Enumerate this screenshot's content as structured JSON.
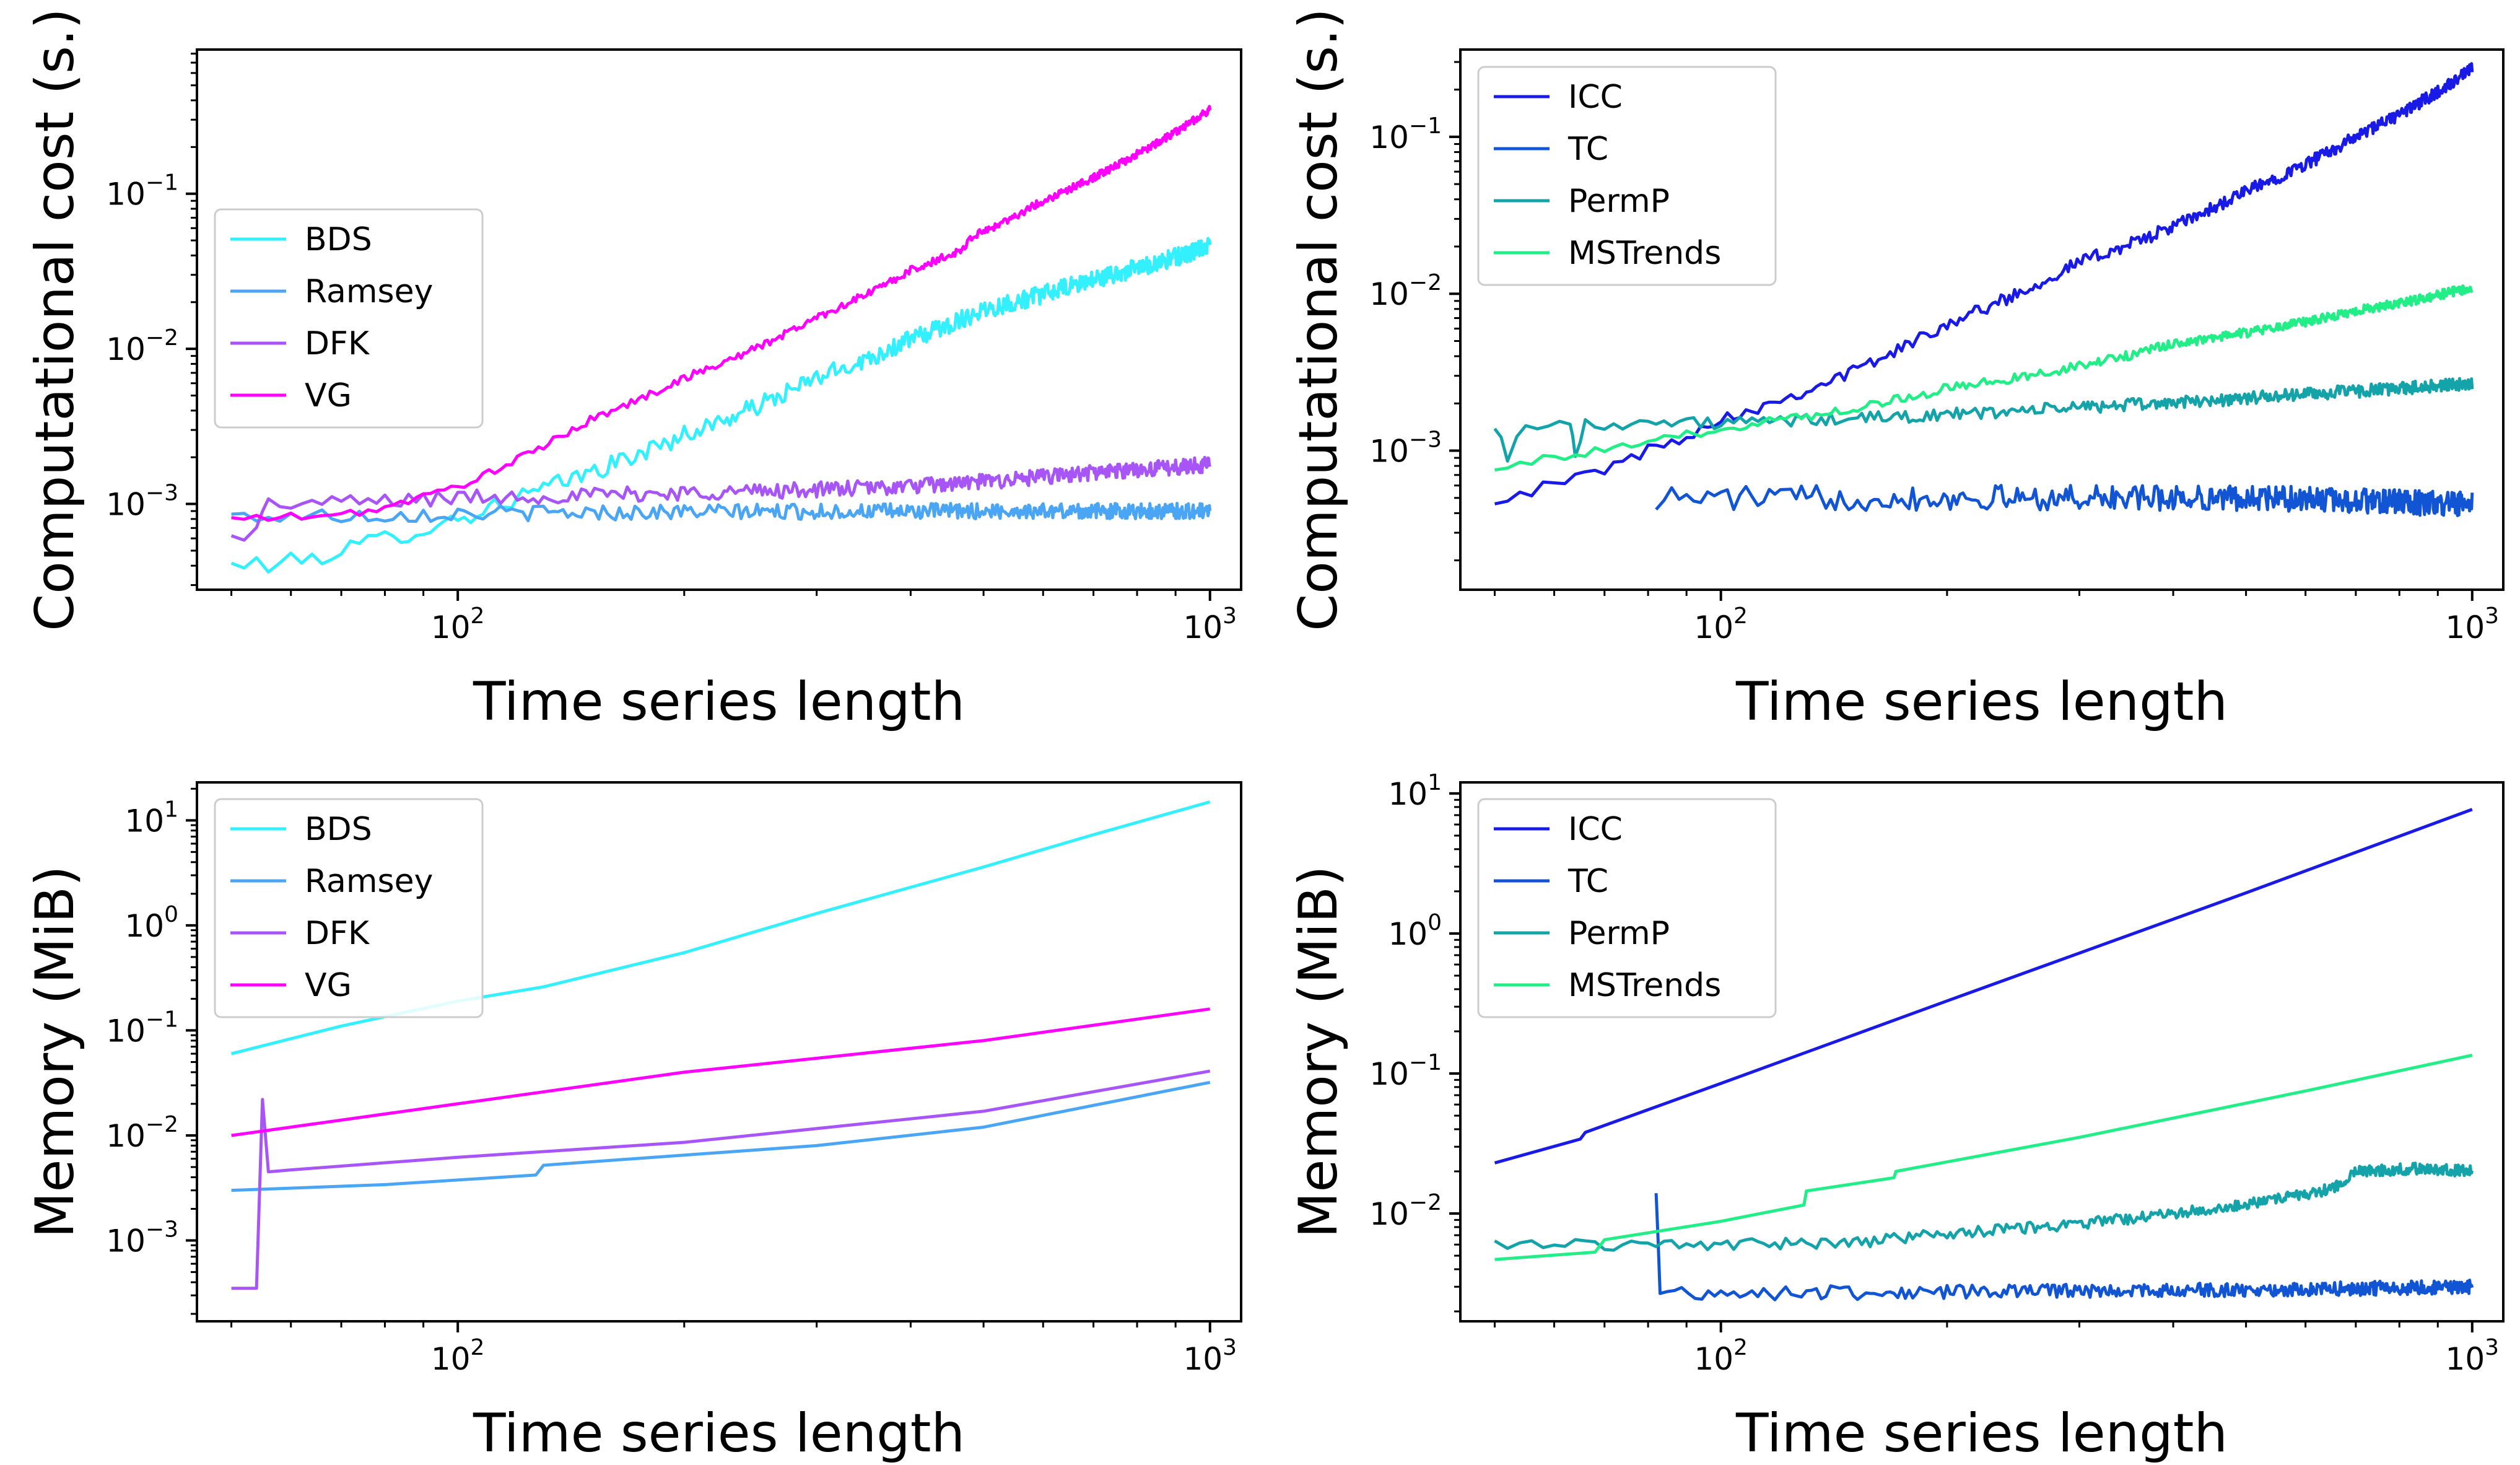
{
  "chart_data": [
    {
      "type": "line",
      "xlabel": "Time series length",
      "ylabel": "Computational cost (s.)",
      "xscale": "log",
      "yscale": "log",
      "xlim": [
        45,
        1100
      ],
      "ylim": [
        0.00028,
        0.85
      ],
      "xticks": [
        {
          "value": 100,
          "base": "10",
          "exp": "2"
        },
        {
          "value": 1000,
          "base": "10",
          "exp": "3"
        }
      ],
      "yticks": [
        {
          "value": 0.001,
          "base": "10",
          "exp": "−3"
        },
        {
          "value": 0.01,
          "base": "10",
          "exp": "−2"
        },
        {
          "value": 0.1,
          "base": "10",
          "exp": "−1"
        }
      ],
      "legend_position": "center-left",
      "series": [
        {
          "name": "BDS",
          "color": "#33f0ff",
          "noise": 0.06,
          "points": [
            [
              50,
              0.0004
            ],
            [
              60,
              0.00042
            ],
            [
              70,
              0.0005
            ],
            [
              80,
              0.0006
            ],
            [
              100,
              0.0008
            ],
            [
              120,
              0.0011
            ],
            [
              150,
              0.0016
            ],
            [
              200,
              0.0028
            ],
            [
              300,
              0.0065
            ],
            [
              400,
              0.0115
            ],
            [
              500,
              0.018
            ],
            [
              700,
              0.028
            ],
            [
              1000,
              0.046
            ]
          ]
        },
        {
          "name": "Ramsey",
          "color": "#4aa6f5",
          "noise": 0.05,
          "points": [
            [
              50,
              0.00083
            ],
            [
              80,
              0.00085
            ],
            [
              100,
              0.00087
            ],
            [
              200,
              0.00089
            ],
            [
              500,
              0.0009
            ],
            [
              1000,
              0.0009
            ]
          ]
        },
        {
          "name": "DFK",
          "color": "#a855f7",
          "noise": 0.05,
          "points": [
            [
              50,
              0.0006
            ],
            [
              54,
              0.0007
            ],
            [
              56,
              0.001
            ],
            [
              60,
              0.001
            ],
            [
              80,
              0.00105
            ],
            [
              100,
              0.0011
            ],
            [
              200,
              0.00118
            ],
            [
              400,
              0.0013
            ],
            [
              700,
              0.0016
            ],
            [
              1000,
              0.0018
            ]
          ]
        },
        {
          "name": "VG",
          "color": "#ff00ff",
          "noise": 0.025,
          "points": [
            [
              50,
              0.0008
            ],
            [
              70,
              0.00085
            ],
            [
              80,
              0.00095
            ],
            [
              100,
              0.0013
            ],
            [
              150,
              0.0035
            ],
            [
              200,
              0.0065
            ],
            [
              300,
              0.016
            ],
            [
              400,
              0.032
            ],
            [
              470,
              0.044
            ],
            [
              480,
              0.052
            ],
            [
              600,
              0.09
            ],
            [
              800,
              0.18
            ],
            [
              1000,
              0.35
            ]
          ]
        }
      ]
    },
    {
      "type": "line",
      "xlabel": "Time series length",
      "ylabel": "Computational cost (s.)",
      "xscale": "log",
      "yscale": "log",
      "xlim": [
        45,
        1100
      ],
      "ylim": [
        0.00013,
        0.36
      ],
      "xticks": [
        {
          "value": 100,
          "base": "10",
          "exp": "2"
        },
        {
          "value": 1000,
          "base": "10",
          "exp": "3"
        }
      ],
      "yticks": [
        {
          "value": 0.001,
          "base": "10",
          "exp": "−3"
        },
        {
          "value": 0.01,
          "base": "10",
          "exp": "−2"
        },
        {
          "value": 0.1,
          "base": "10",
          "exp": "−1"
        }
      ],
      "legend_position": "upper-left",
      "series": [
        {
          "name": "ICC",
          "color": "#1a1ae6",
          "noise": 0.04,
          "points": [
            [
              50,
              0.0005
            ],
            [
              60,
              0.0006
            ],
            [
              80,
              0.001
            ],
            [
              100,
              0.0016
            ],
            [
              200,
              0.0065
            ],
            [
              300,
              0.016
            ],
            [
              500,
              0.045
            ],
            [
              700,
              0.1
            ],
            [
              1000,
              0.27
            ]
          ]
        },
        {
          "name": "TC",
          "color": "#1155d4",
          "noise": 0.08,
          "points": [
            [
              82,
              0.0005
            ],
            [
              90,
              0.0005
            ],
            [
              200,
              0.0005
            ],
            [
              500,
              0.0005
            ],
            [
              1000,
              0.00045
            ]
          ]
        },
        {
          "name": "PermP",
          "color": "#13a3a8",
          "noise": 0.04,
          "points": [
            [
              50,
              0.0015
            ],
            [
              52,
              0.0009
            ],
            [
              55,
              0.0015
            ],
            [
              63,
              0.0015
            ],
            [
              64,
              0.0009
            ],
            [
              66,
              0.0015
            ],
            [
              100,
              0.0015
            ],
            [
              150,
              0.0016
            ],
            [
              300,
              0.0019
            ],
            [
              600,
              0.0023
            ],
            [
              1000,
              0.0027
            ]
          ]
        },
        {
          "name": "MSTrends",
          "color": "#22ee88",
          "noise": 0.03,
          "points": [
            [
              50,
              0.0008
            ],
            [
              70,
              0.001
            ],
            [
              100,
              0.0014
            ],
            [
              200,
              0.0025
            ],
            [
              400,
              0.0048
            ],
            [
              700,
              0.0078
            ],
            [
              1000,
              0.011
            ]
          ]
        }
      ]
    },
    {
      "type": "line",
      "xlabel": "Time series length",
      "ylabel": "Memory (MiB)",
      "xscale": "log",
      "yscale": "log",
      "xlim": [
        45,
        1100
      ],
      "ylim": [
        0.00017,
        23
      ],
      "xticks": [
        {
          "value": 100,
          "base": "10",
          "exp": "2"
        },
        {
          "value": 1000,
          "base": "10",
          "exp": "3"
        }
      ],
      "yticks": [
        {
          "value": 0.001,
          "base": "10",
          "exp": "−3"
        },
        {
          "value": 0.01,
          "base": "10",
          "exp": "−2"
        },
        {
          "value": 0.1,
          "base": "10",
          "exp": "−1"
        },
        {
          "value": 1,
          "base": "10",
          "exp": "0"
        },
        {
          "value": 10,
          "base": "10",
          "exp": "1"
        }
      ],
      "legend_position": "upper-left",
      "series": [
        {
          "name": "BDS",
          "color": "#33f0ff",
          "noise": 0,
          "points": [
            [
              50,
              0.06
            ],
            [
              70,
              0.11
            ],
            [
              100,
              0.19
            ],
            [
              130,
              0.26
            ],
            [
              200,
              0.55
            ],
            [
              300,
              1.3
            ],
            [
              500,
              3.6
            ],
            [
              700,
              7.3
            ],
            [
              1000,
              15
            ]
          ]
        },
        {
          "name": "Ramsey",
          "color": "#4aa6f5",
          "noise": 0,
          "points": [
            [
              50,
              0.003
            ],
            [
              80,
              0.0034
            ],
            [
              127,
              0.0042
            ],
            [
              130,
              0.0052
            ],
            [
              200,
              0.0065
            ],
            [
              300,
              0.008
            ],
            [
              500,
              0.012
            ],
            [
              1000,
              0.032
            ]
          ]
        },
        {
          "name": "DFK",
          "color": "#a855f7",
          "noise": 0,
          "points": [
            [
              50,
              0.00035
            ],
            [
              54,
              0.00035
            ],
            [
              55,
              0.022
            ],
            [
              56,
              0.0045
            ],
            [
              60,
              0.0047
            ],
            [
              100,
              0.0062
            ],
            [
              200,
              0.0086
            ],
            [
              500,
              0.017
            ],
            [
              1000,
              0.041
            ]
          ]
        },
        {
          "name": "VG",
          "color": "#ff00ff",
          "noise": 0,
          "points": [
            [
              50,
              0.01
            ],
            [
              100,
              0.02
            ],
            [
              200,
              0.04
            ],
            [
              500,
              0.08
            ],
            [
              1000,
              0.16
            ]
          ]
        }
      ]
    },
    {
      "type": "line",
      "xlabel": "Time series length",
      "ylabel": "Memory (MiB)",
      "xscale": "log",
      "yscale": "log",
      "xlim": [
        45,
        1100
      ],
      "ylim": [
        0.0017,
        12
      ],
      "xticks": [
        {
          "value": 100,
          "base": "10",
          "exp": "2"
        },
        {
          "value": 1000,
          "base": "10",
          "exp": "3"
        }
      ],
      "yticks": [
        {
          "value": 0.01,
          "base": "10",
          "exp": "−2"
        },
        {
          "value": 0.1,
          "base": "10",
          "exp": "−1"
        },
        {
          "value": 1,
          "base": "10",
          "exp": "0"
        },
        {
          "value": 10,
          "base": "10",
          "exp": "1"
        }
      ],
      "legend_position": "upper-left",
      "series": [
        {
          "name": "ICC",
          "color": "#1a1ae6",
          "noise": 0,
          "points": [
            [
              50,
              0.023
            ],
            [
              65,
              0.034
            ],
            [
              66,
              0.038
            ],
            [
              100,
              0.085
            ],
            [
              200,
              0.33
            ],
            [
              500,
              1.95
            ],
            [
              1000,
              7.7
            ]
          ]
        },
        {
          "name": "TC",
          "color": "#1155d4",
          "noise": 0.05,
          "points": [
            [
              82,
              0.013
            ],
            [
              83,
              0.0028
            ],
            [
              100,
              0.0027
            ],
            [
              300,
              0.0028
            ],
            [
              1000,
              0.003
            ]
          ]
        },
        {
          "name": "PermP",
          "color": "#13a3a8",
          "noise": 0.04,
          "points": [
            [
              50,
              0.006
            ],
            [
              100,
              0.006
            ],
            [
              150,
              0.0062
            ],
            [
              200,
              0.0072
            ],
            [
              400,
              0.01
            ],
            [
              650,
              0.015
            ],
            [
              700,
              0.02
            ],
            [
              850,
              0.021
            ],
            [
              1000,
              0.02
            ]
          ]
        },
        {
          "name": "MSTrends",
          "color": "#22ee88",
          "noise": 0,
          "points": [
            [
              50,
              0.0047
            ],
            [
              68,
              0.0053
            ],
            [
              70,
              0.0065
            ],
            [
              100,
              0.0088
            ],
            [
              129,
              0.0115
            ],
            [
              130,
              0.0145
            ],
            [
              170,
              0.018
            ],
            [
              171,
              0.02
            ],
            [
              300,
              0.035
            ],
            [
              600,
              0.075
            ],
            [
              1000,
              0.135
            ]
          ]
        }
      ]
    }
  ]
}
